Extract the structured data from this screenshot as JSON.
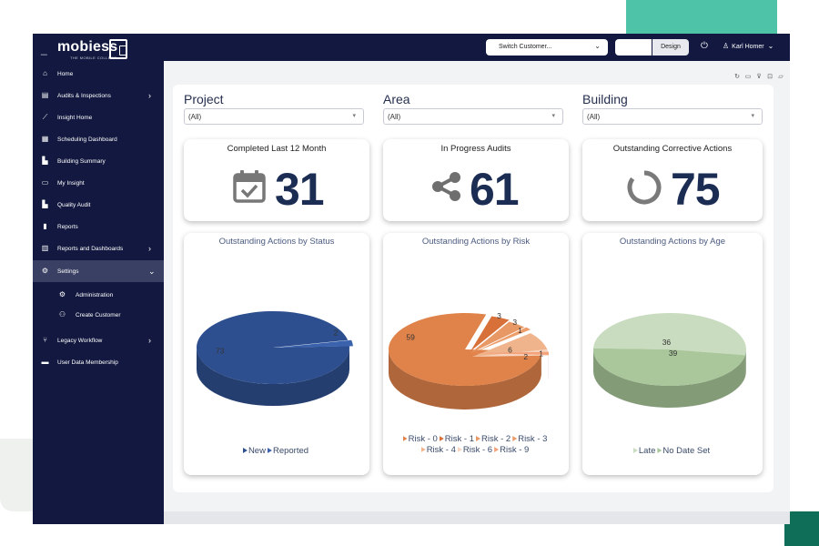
{
  "header": {
    "logo_text": "mobiess",
    "logo_tagline": "THE MOBILE COLLEGE",
    "customer_select": "Switch Customer...",
    "view_button": "",
    "design_button": "Design",
    "user_name": "Karl Homer"
  },
  "sidebar": {
    "items": [
      {
        "label": "Home",
        "icon": "home-icon",
        "glyph": "⌂"
      },
      {
        "label": "Audits & Inspections",
        "icon": "clipboard-icon",
        "glyph": "▤",
        "arrow": "›"
      },
      {
        "label": "Insight Home",
        "icon": "line-chart-icon",
        "glyph": "⟋"
      },
      {
        "label": "Scheduling Dashboard",
        "icon": "calendar-icon",
        "glyph": "▦"
      },
      {
        "label": "Building Summary",
        "icon": "bar-chart-icon",
        "glyph": "▙"
      },
      {
        "label": "My Insight",
        "icon": "report-icon",
        "glyph": "▭"
      },
      {
        "label": "Quality Audit",
        "icon": "chart-area-icon",
        "glyph": "▙"
      },
      {
        "label": "Reports",
        "icon": "document-icon",
        "glyph": "▮"
      },
      {
        "label": "Reports and Dashboards",
        "icon": "library-icon",
        "glyph": "▥",
        "arrow": "›"
      },
      {
        "label": "Settings",
        "icon": "cogs-icon",
        "glyph": "⚙",
        "arrow": "⌄",
        "active": true
      },
      {
        "label": "Administration",
        "icon": "gear-icon",
        "glyph": "⚙",
        "sub": true
      },
      {
        "label": "Create Customer",
        "icon": "add-user-icon",
        "glyph": "⚇",
        "sub": true
      },
      {
        "label": "Legacy Workflow",
        "icon": "branch-icon",
        "glyph": "⑂",
        "arrow": "›"
      },
      {
        "label": "User Data Membership",
        "icon": "id-card-icon",
        "glyph": "▬"
      }
    ]
  },
  "toolbar": {
    "icons": [
      "refresh-icon",
      "folder-icon",
      "clear-filter-icon",
      "export-icon",
      "comment-icon"
    ]
  },
  "filters": [
    {
      "title": "Project",
      "value": "(All)"
    },
    {
      "title": "Area",
      "value": "(All)"
    },
    {
      "title": "Building",
      "value": "(All)"
    }
  ],
  "kpis": [
    {
      "title": "Completed Last 12 Month",
      "value": "31",
      "icon": "calendar-check-icon"
    },
    {
      "title": "In Progress Audits",
      "value": "61",
      "icon": "share-icon"
    },
    {
      "title": "Outstanding Corrective Actions",
      "value": "75",
      "icon": "circle-notch-icon"
    }
  ],
  "colors": {
    "nav_bg": "#12183f",
    "status_blue": "#2e4f8f",
    "risk_orange": "#e0834a",
    "age_green": "#a9c79a",
    "kpi_value": "#1c2d54"
  },
  "chart_data": [
    {
      "type": "pie",
      "title": "Outstanding Actions by Status",
      "labels": [
        "New",
        "Reported"
      ],
      "values": [
        73,
        2
      ],
      "colors": [
        "#2e4f8f",
        "#3b63ad"
      ],
      "style": "3d"
    },
    {
      "type": "pie",
      "title": "Outstanding Actions by Risk",
      "labels": [
        "Risk - 0",
        "Risk - 1",
        "Risk - 2",
        "Risk - 3",
        "Risk - 4",
        "Risk - 6",
        "Risk - 9"
      ],
      "values": [
        59,
        3,
        3,
        1,
        6,
        2,
        1
      ],
      "colors": [
        "#e0834a",
        "#d8703a",
        "#e89864",
        "#ed9d6a",
        "#f0b48c",
        "#f7d4bf",
        "#f3a27a"
      ],
      "style": "3d"
    },
    {
      "type": "pie",
      "title": "Outstanding Actions by Age",
      "labels": [
        "Late",
        "No Date Set"
      ],
      "values": [
        39,
        36
      ],
      "colors": [
        "#c9dcbf",
        "#a9c79a"
      ],
      "style": "3d"
    }
  ]
}
